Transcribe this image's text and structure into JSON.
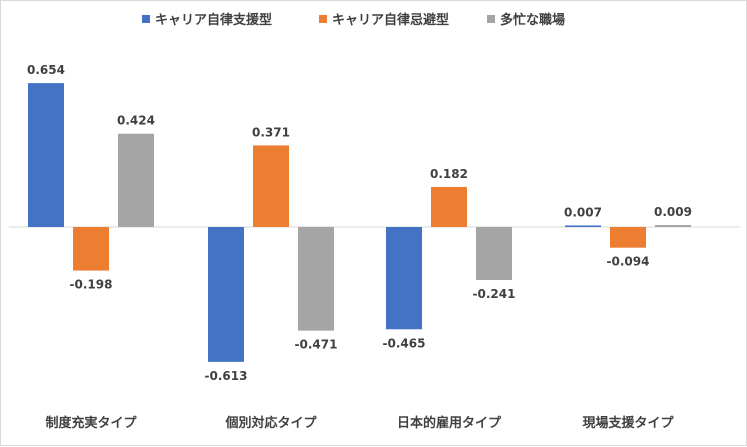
{
  "chart_data": {
    "type": "bar",
    "categories": [
      "制度充実タイプ",
      "個別対応タイプ",
      "日本的雇用タイプ",
      "現場支援タイプ"
    ],
    "series": [
      {
        "name": "キャリア自律支援型",
        "color": "#4472c4",
        "values": [
          0.654,
          -0.613,
          -0.465,
          0.007
        ]
      },
      {
        "name": "キャリア自律忌避型",
        "color": "#ed7d31",
        "values": [
          -0.198,
          0.371,
          0.182,
          -0.094
        ]
      },
      {
        "name": "多忙な職場",
        "color": "#a5a5a5",
        "values": [
          0.424,
          -0.471,
          -0.241,
          0.009
        ]
      }
    ],
    "value_labels": [
      [
        "0.654",
        "-0.198",
        "0.424"
      ],
      [
        "-0.613",
        "0.371",
        "-0.471"
      ],
      [
        "-0.465",
        "0.182",
        "-0.241"
      ],
      [
        "0.007",
        "-0.094",
        "0.009"
      ]
    ],
    "ylim": [
      -0.613,
      0.654
    ],
    "legend": "top",
    "grid": false
  }
}
